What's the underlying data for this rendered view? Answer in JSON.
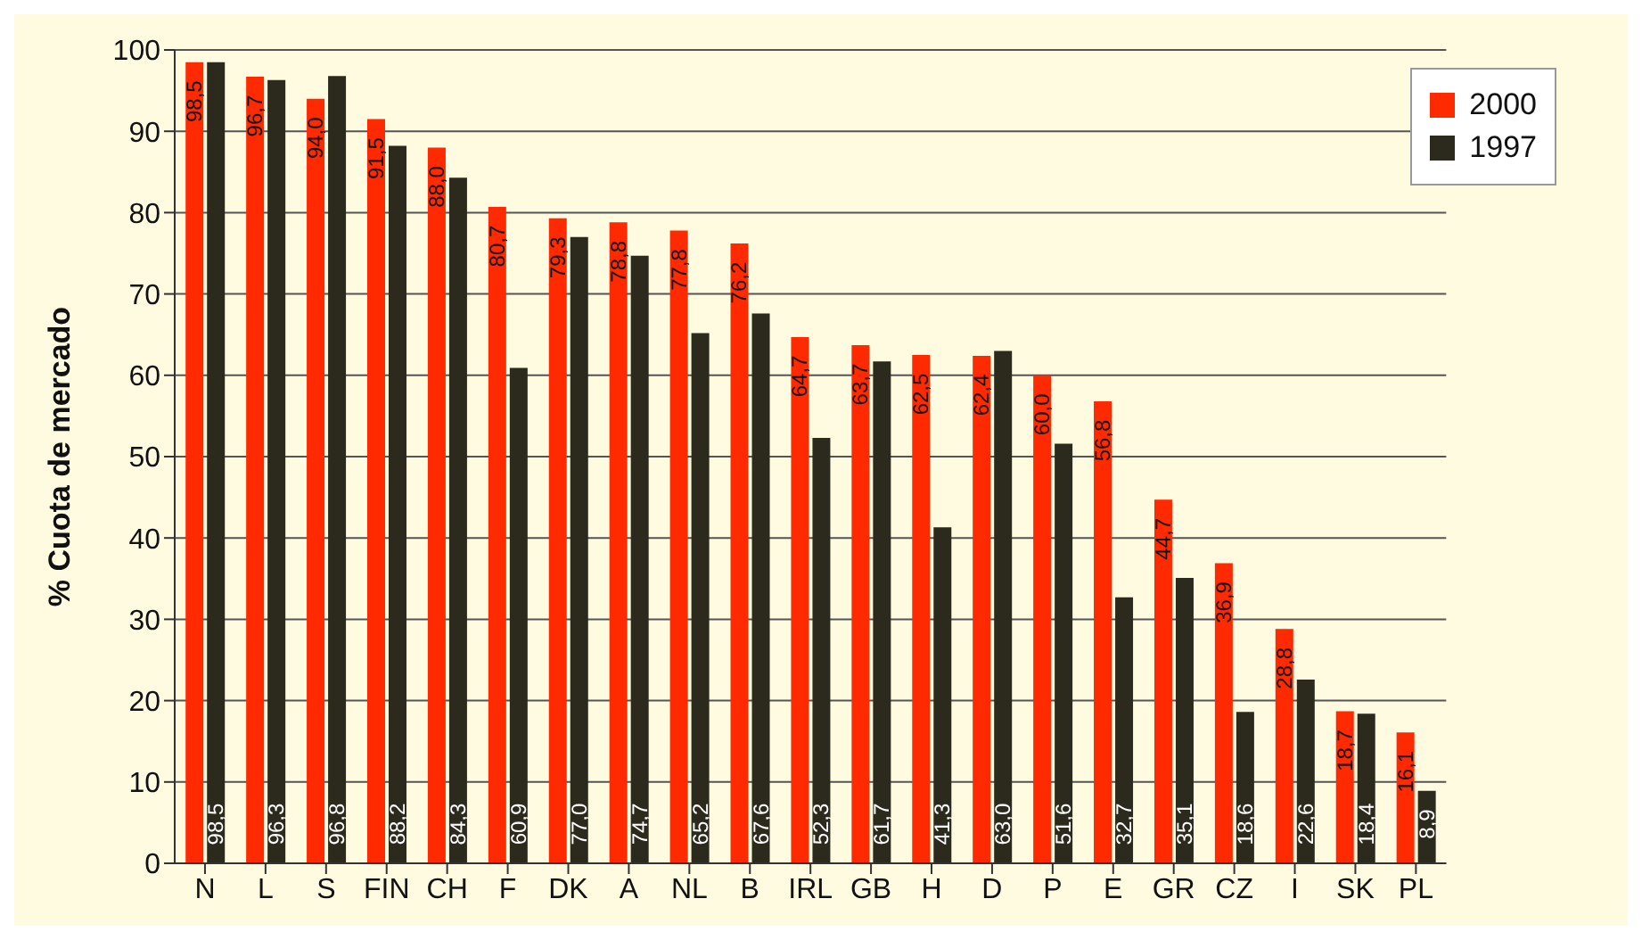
{
  "chart_data": {
    "type": "bar",
    "ylabel": "% Cuota de mercado",
    "categories": [
      "N",
      "L",
      "S",
      "FIN",
      "CH",
      "F",
      "DK",
      "A",
      "NL",
      "B",
      "IRL",
      "GB",
      "H",
      "D",
      "P",
      "E",
      "GR",
      "CZ",
      "I",
      "SK",
      "PL"
    ],
    "series": [
      {
        "name": "2000",
        "color": "#ff2a00",
        "values": [
          98.5,
          96.7,
          94.0,
          91.5,
          88.0,
          80.7,
          79.3,
          78.8,
          77.8,
          76.2,
          64.7,
          63.7,
          62.5,
          62.4,
          60.0,
          56.8,
          44.7,
          36.9,
          28.8,
          18.7,
          16.1
        ],
        "value_labels": [
          "98,5",
          "96,7",
          "94,0",
          "91,5",
          "88,0",
          "80,7",
          "79,3",
          "78,8",
          "77,8",
          "76,2",
          "64,7",
          "63,7",
          "62,5",
          "62,4",
          "60,0",
          "56,8",
          "44,7",
          "36,9",
          "28,8",
          "18,7",
          "16,1"
        ]
      },
      {
        "name": "1997",
        "color": "#2b2a1c",
        "values": [
          98.5,
          96.3,
          96.8,
          88.2,
          84.3,
          60.9,
          77.0,
          74.7,
          65.2,
          67.6,
          52.3,
          61.7,
          41.3,
          63.0,
          51.6,
          32.7,
          35.1,
          18.6,
          22.6,
          18.4,
          8.9
        ],
        "value_labels": [
          "98,5",
          "96,3",
          "96,8",
          "88,2",
          "84,3",
          "60,9",
          "77,0",
          "74,7",
          "65,2",
          "67,6",
          "52,3",
          "61,7",
          "41,3",
          "63,0",
          "51,6",
          "32,7",
          "35,1",
          "18,6",
          "22,6",
          "18,4",
          "8,9"
        ]
      }
    ],
    "ylim": [
      0,
      100
    ],
    "yticks": [
      0,
      10,
      20,
      30,
      40,
      50,
      60,
      70,
      80,
      90,
      100
    ],
    "grid": "y",
    "legend": "top right"
  }
}
